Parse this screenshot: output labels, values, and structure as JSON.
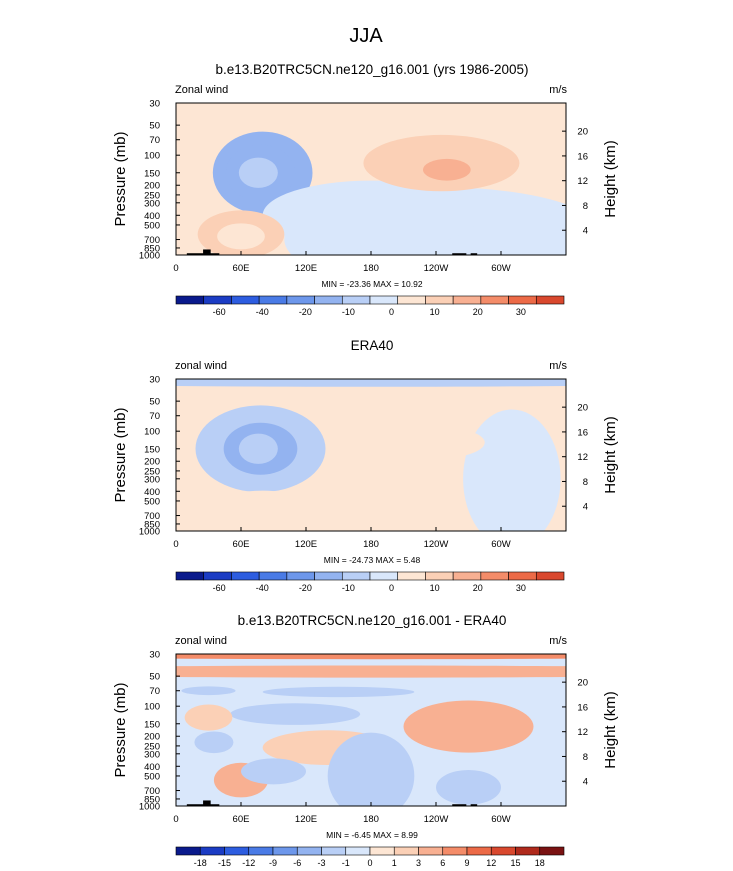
{
  "figure": {
    "title": "JJA"
  },
  "colors": {
    "blue_scale": [
      "#0a1a8c",
      "#1b3cc4",
      "#2d5de0",
      "#4a7be6",
      "#6d97eb",
      "#93b3f0",
      "#b9cff6",
      "#d9e7fb"
    ],
    "red_scale": [
      "#fde6d4",
      "#fbd0b6",
      "#f8b092",
      "#f48c69",
      "#ec6a47",
      "#d9482e",
      "#b02a1c",
      "#7a1212"
    ],
    "topography": "#000000"
  },
  "chart_data": [
    {
      "type": "heatmap",
      "title": "b.e13.B20TRC5CN.ne120_g16.001 (yrs 1986-2005)",
      "left_label": "Zonal wind",
      "right_label": "m/s",
      "ylabel": "Pressure (mb)",
      "ylabel_right": "Height (km)",
      "x_ticks": [
        "0",
        "60E",
        "120E",
        "180",
        "120W",
        "60W"
      ],
      "x_tick_lon": [
        0,
        60,
        120,
        180,
        240,
        300
      ],
      "xlim": [
        0,
        360
      ],
      "y_ticks": [
        "30",
        "50",
        "70",
        "100",
        "150",
        "200",
        "250",
        "300",
        "400",
        "500",
        "700",
        "850",
        "1000"
      ],
      "y_tick_p": [
        30,
        50,
        70,
        100,
        150,
        200,
        250,
        300,
        400,
        500,
        700,
        850,
        1000
      ],
      "ylim": [
        1000,
        30
      ],
      "height_ticks": [
        "4",
        "8",
        "12",
        "16",
        "20"
      ],
      "height_tick_km": [
        4,
        8,
        12,
        16,
        20
      ],
      "min_max_text": "MIN = -23.36  MAX = 10.92",
      "min": -23.36,
      "max": 10.92,
      "colorbar_labels": [
        "-60",
        "-40",
        "-20",
        "-10",
        "0",
        "10",
        "20",
        "30"
      ],
      "colorbar_levels": [
        -60,
        -50,
        -40,
        -30,
        -20,
        -15,
        -10,
        -5,
        0,
        5,
        10,
        15,
        20,
        25,
        30
      ],
      "background_level": 1,
      "features": [
        {
          "lon": 80,
          "p": 150,
          "rlon": 46,
          "rp": 0.95,
          "v": -12
        },
        {
          "lon": 78,
          "p": 150,
          "rlon": 32,
          "rp": 0.65,
          "v": -12
        },
        {
          "lon": 76,
          "p": 150,
          "rlon": 18,
          "rp": 0.35,
          "v": -10
        },
        {
          "lon": 250,
          "p": 700,
          "rlon": 150,
          "rp": 1.2,
          "v": -3
        },
        {
          "lon": 180,
          "p": 400,
          "rlon": 100,
          "rp": 0.8,
          "v": -2
        },
        {
          "lon": 245,
          "p": 120,
          "rlon": 72,
          "rp": 0.65,
          "v": 8
        },
        {
          "lon": 250,
          "p": 140,
          "rlon": 22,
          "rp": 0.25,
          "v": 10
        },
        {
          "lon": 60,
          "p": 620,
          "rlon": 40,
          "rp": 0.55,
          "v": 7
        },
        {
          "lon": 60,
          "p": 650,
          "rlon": 22,
          "rp": 0.3,
          "v": 4
        }
      ],
      "topography": [
        [
          10,
          40,
          960
        ],
        [
          25,
          32,
          880
        ],
        [
          255,
          268,
          960
        ],
        [
          272,
          278,
          960
        ]
      ]
    },
    {
      "type": "heatmap",
      "title": "ERA40",
      "left_label": "zonal wind",
      "right_label": "m/s",
      "ylabel": "Pressure (mb)",
      "ylabel_right": "Height (km)",
      "x_ticks": [
        "0",
        "60E",
        "120E",
        "180",
        "120W",
        "60W"
      ],
      "x_tick_lon": [
        0,
        60,
        120,
        180,
        240,
        300
      ],
      "xlim": [
        0,
        360
      ],
      "y_ticks": [
        "30",
        "50",
        "70",
        "100",
        "150",
        "200",
        "250",
        "300",
        "400",
        "500",
        "700",
        "850",
        "1000"
      ],
      "y_tick_p": [
        30,
        50,
        70,
        100,
        150,
        200,
        250,
        300,
        400,
        500,
        700,
        850,
        1000
      ],
      "ylim": [
        1000,
        30
      ],
      "height_ticks": [
        "4",
        "8",
        "12",
        "16",
        "20"
      ],
      "height_tick_km": [
        4,
        8,
        12,
        16,
        20
      ],
      "min_max_text": "MIN = -24.73  MAX = 5.48",
      "min": -24.73,
      "max": 5.48,
      "colorbar_labels": [
        "-60",
        "-40",
        "-20",
        "-10",
        "0",
        "10",
        "20",
        "30"
      ],
      "colorbar_levels": [
        -60,
        -50,
        -40,
        -30,
        -20,
        -15,
        -10,
        -5,
        0,
        5,
        10,
        15,
        20,
        25,
        30
      ],
      "background_level": 1,
      "features": [
        {
          "lon": 180,
          "p": 30,
          "rlon": 400,
          "rp": 0.18,
          "v": -6
        },
        {
          "lon": 78,
          "p": 150,
          "rlon": 60,
          "rp": 1.0,
          "v": -10
        },
        {
          "lon": 78,
          "p": 150,
          "rlon": 34,
          "rp": 0.6,
          "v": -14
        },
        {
          "lon": 76,
          "p": 150,
          "rlon": 18,
          "rp": 0.35,
          "v": -10
        },
        {
          "lon": 310,
          "p": 300,
          "rlon": 45,
          "rp": 1.6,
          "v": -5
        },
        {
          "lon": 230,
          "p": 130,
          "rlon": 55,
          "rp": 0.4,
          "v": 4
        },
        {
          "lon": 80,
          "p": 650,
          "rlon": 55,
          "rp": 0.5,
          "v": 3
        },
        {
          "lon": 85,
          "p": 700,
          "rlon": 8,
          "rp": 0.1,
          "v": 4
        }
      ],
      "topography": []
    },
    {
      "type": "heatmap",
      "title": "b.e13.B20TRC5CN.ne120_g16.001 - ERA40",
      "left_label": "zonal wind",
      "right_label": "m/s",
      "ylabel": "Pressure (mb)",
      "ylabel_right": "Height (km)",
      "x_ticks": [
        "0",
        "60E",
        "120E",
        "180",
        "120W",
        "60W"
      ],
      "x_tick_lon": [
        0,
        60,
        120,
        180,
        240,
        300
      ],
      "xlim": [
        0,
        360
      ],
      "y_ticks": [
        "30",
        "50",
        "70",
        "100",
        "150",
        "200",
        "250",
        "300",
        "400",
        "500",
        "700",
        "850",
        "1000"
      ],
      "y_tick_p": [
        30,
        50,
        70,
        100,
        150,
        200,
        250,
        300,
        400,
        500,
        700,
        850,
        1000
      ],
      "ylim": [
        1000,
        30
      ],
      "height_ticks": [
        "4",
        "8",
        "12",
        "16",
        "20"
      ],
      "height_tick_km": [
        4,
        8,
        12,
        16,
        20
      ],
      "min_max_text": "MIN = -6.45  MAX = 8.99",
      "min": -6.45,
      "max": 8.99,
      "colorbar_labels": [
        "-18",
        "-15",
        "-12",
        "-9",
        "-6",
        "-3",
        "-1",
        "0",
        "1",
        "3",
        "6",
        "9",
        "12",
        "15",
        "18"
      ],
      "colorbar_levels": [
        -21,
        -18,
        -15,
        -12,
        -9,
        -6,
        -3,
        -1,
        0,
        1,
        3,
        6,
        9,
        12,
        15,
        18,
        21
      ],
      "background_level": -0.5,
      "features": [
        {
          "lon": 180,
          "p": 30,
          "rlon": 400,
          "rp": 0.12,
          "v": 6
        },
        {
          "lon": 180,
          "p": 45,
          "rlon": 400,
          "rp": 0.14,
          "v": 3
        },
        {
          "lon": 150,
          "p": 72,
          "rlon": 70,
          "rp": 0.12,
          "v": -2
        },
        {
          "lon": 30,
          "p": 70,
          "rlon": 25,
          "rp": 0.1,
          "v": -2
        },
        {
          "lon": 110,
          "p": 120,
          "rlon": 60,
          "rp": 0.25,
          "v": -2
        },
        {
          "lon": 270,
          "p": 160,
          "rlon": 60,
          "rp": 0.6,
          "v": 4
        },
        {
          "lon": 280,
          "p": 140,
          "rlon": 18,
          "rp": 0.2,
          "v": 4
        },
        {
          "lon": 140,
          "p": 260,
          "rlon": 60,
          "rp": 0.4,
          "v": 1.5
        },
        {
          "lon": 30,
          "p": 130,
          "rlon": 22,
          "rp": 0.3,
          "v": 1.5
        },
        {
          "lon": 60,
          "p": 550,
          "rlon": 25,
          "rp": 0.4,
          "v": 4
        },
        {
          "lon": 180,
          "p": 500,
          "rlon": 40,
          "rp": 1.0,
          "v": -1.2
        },
        {
          "lon": 270,
          "p": 650,
          "rlon": 30,
          "rp": 0.4,
          "v": -3
        },
        {
          "lon": 90,
          "p": 450,
          "rlon": 30,
          "rp": 0.3,
          "v": -2
        },
        {
          "lon": 35,
          "p": 230,
          "rlon": 18,
          "rp": 0.25,
          "v": -3
        }
      ],
      "topography": [
        [
          10,
          40,
          960
        ],
        [
          25,
          32,
          880
        ],
        [
          255,
          268,
          960
        ],
        [
          272,
          278,
          960
        ]
      ]
    }
  ]
}
